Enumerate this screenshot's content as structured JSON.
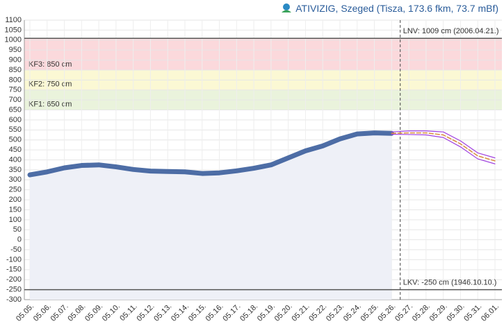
{
  "chart_data": {
    "type": "line",
    "title": "ATIVIZIG, Szeged (Tisza, 173.6 fkm, 73.7 mBf)",
    "categories": [
      "05.05.",
      "05.06.",
      "05.07.",
      "05.08.",
      "05.09.",
      "05.10.",
      "05.11.",
      "05.12.",
      "05.13.",
      "05.14.",
      "05.15.",
      "05.16.",
      "05.17.",
      "05.18.",
      "05.19.",
      "05.20.",
      "05.21.",
      "05.22.",
      "05.23.",
      "05.24.",
      "05.25.",
      "05.26.",
      "05.27.",
      "05.28.",
      "05.29.",
      "05.30.",
      "05.31.",
      "06.01."
    ],
    "series": [
      {
        "color": "#2f5597",
        "values": [
          325,
          340,
          360,
          372,
          375,
          365,
          352,
          344,
          342,
          340,
          332,
          335,
          345,
          358,
          375,
          410,
          445,
          470,
          505,
          530,
          535,
          533,
          null,
          null,
          null,
          null,
          null,
          null
        ]
      },
      {
        "color": "#a040e0",
        "values": [
          null,
          null,
          null,
          null,
          null,
          null,
          null,
          null,
          null,
          null,
          null,
          null,
          null,
          null,
          null,
          null,
          null,
          null,
          null,
          null,
          null,
          540,
          545,
          545,
          540,
          495,
          435,
          410
        ]
      },
      {
        "color": "#d98c3a",
        "values": [
          null,
          null,
          null,
          null,
          null,
          null,
          null,
          null,
          null,
          null,
          null,
          null,
          null,
          null,
          null,
          null,
          null,
          null,
          null,
          null,
          null,
          533,
          535,
          535,
          525,
          480,
          420,
          395
        ]
      },
      {
        "color": "#a040e0",
        "values": [
          null,
          null,
          null,
          null,
          null,
          null,
          null,
          null,
          null,
          null,
          null,
          null,
          null,
          null,
          null,
          null,
          null,
          null,
          null,
          null,
          null,
          528,
          527,
          525,
          512,
          465,
          405,
          380
        ]
      }
    ],
    "bands": [
      {
        "label": "KF3: 850 cm",
        "from": 850,
        "to": 1009,
        "color": "#fbd9dc"
      },
      {
        "label": "KF2: 750 cm",
        "from": 750,
        "to": 850,
        "color": "#fbf8d4"
      },
      {
        "label": "KF1: 650 cm",
        "from": 650,
        "to": 750,
        "color": "#eaf3dc"
      }
    ],
    "ref_lines": [
      {
        "value": 1009,
        "label": "LNV: 1009 cm (2006.04.21.)"
      },
      {
        "value": -250,
        "label": "LKV: -250 cm (1946.10.10.)"
      }
    ],
    "ylim": [
      -300,
      1100
    ],
    "yticks": [
      1100,
      1050,
      1000,
      950,
      900,
      850,
      800,
      750,
      700,
      650,
      600,
      550,
      500,
      450,
      400,
      350,
      300,
      250,
      200,
      150,
      100,
      50,
      0,
      -50,
      -100,
      -150,
      -200,
      -250,
      -300
    ],
    "grid": true,
    "area_color": "#eef0f7"
  }
}
